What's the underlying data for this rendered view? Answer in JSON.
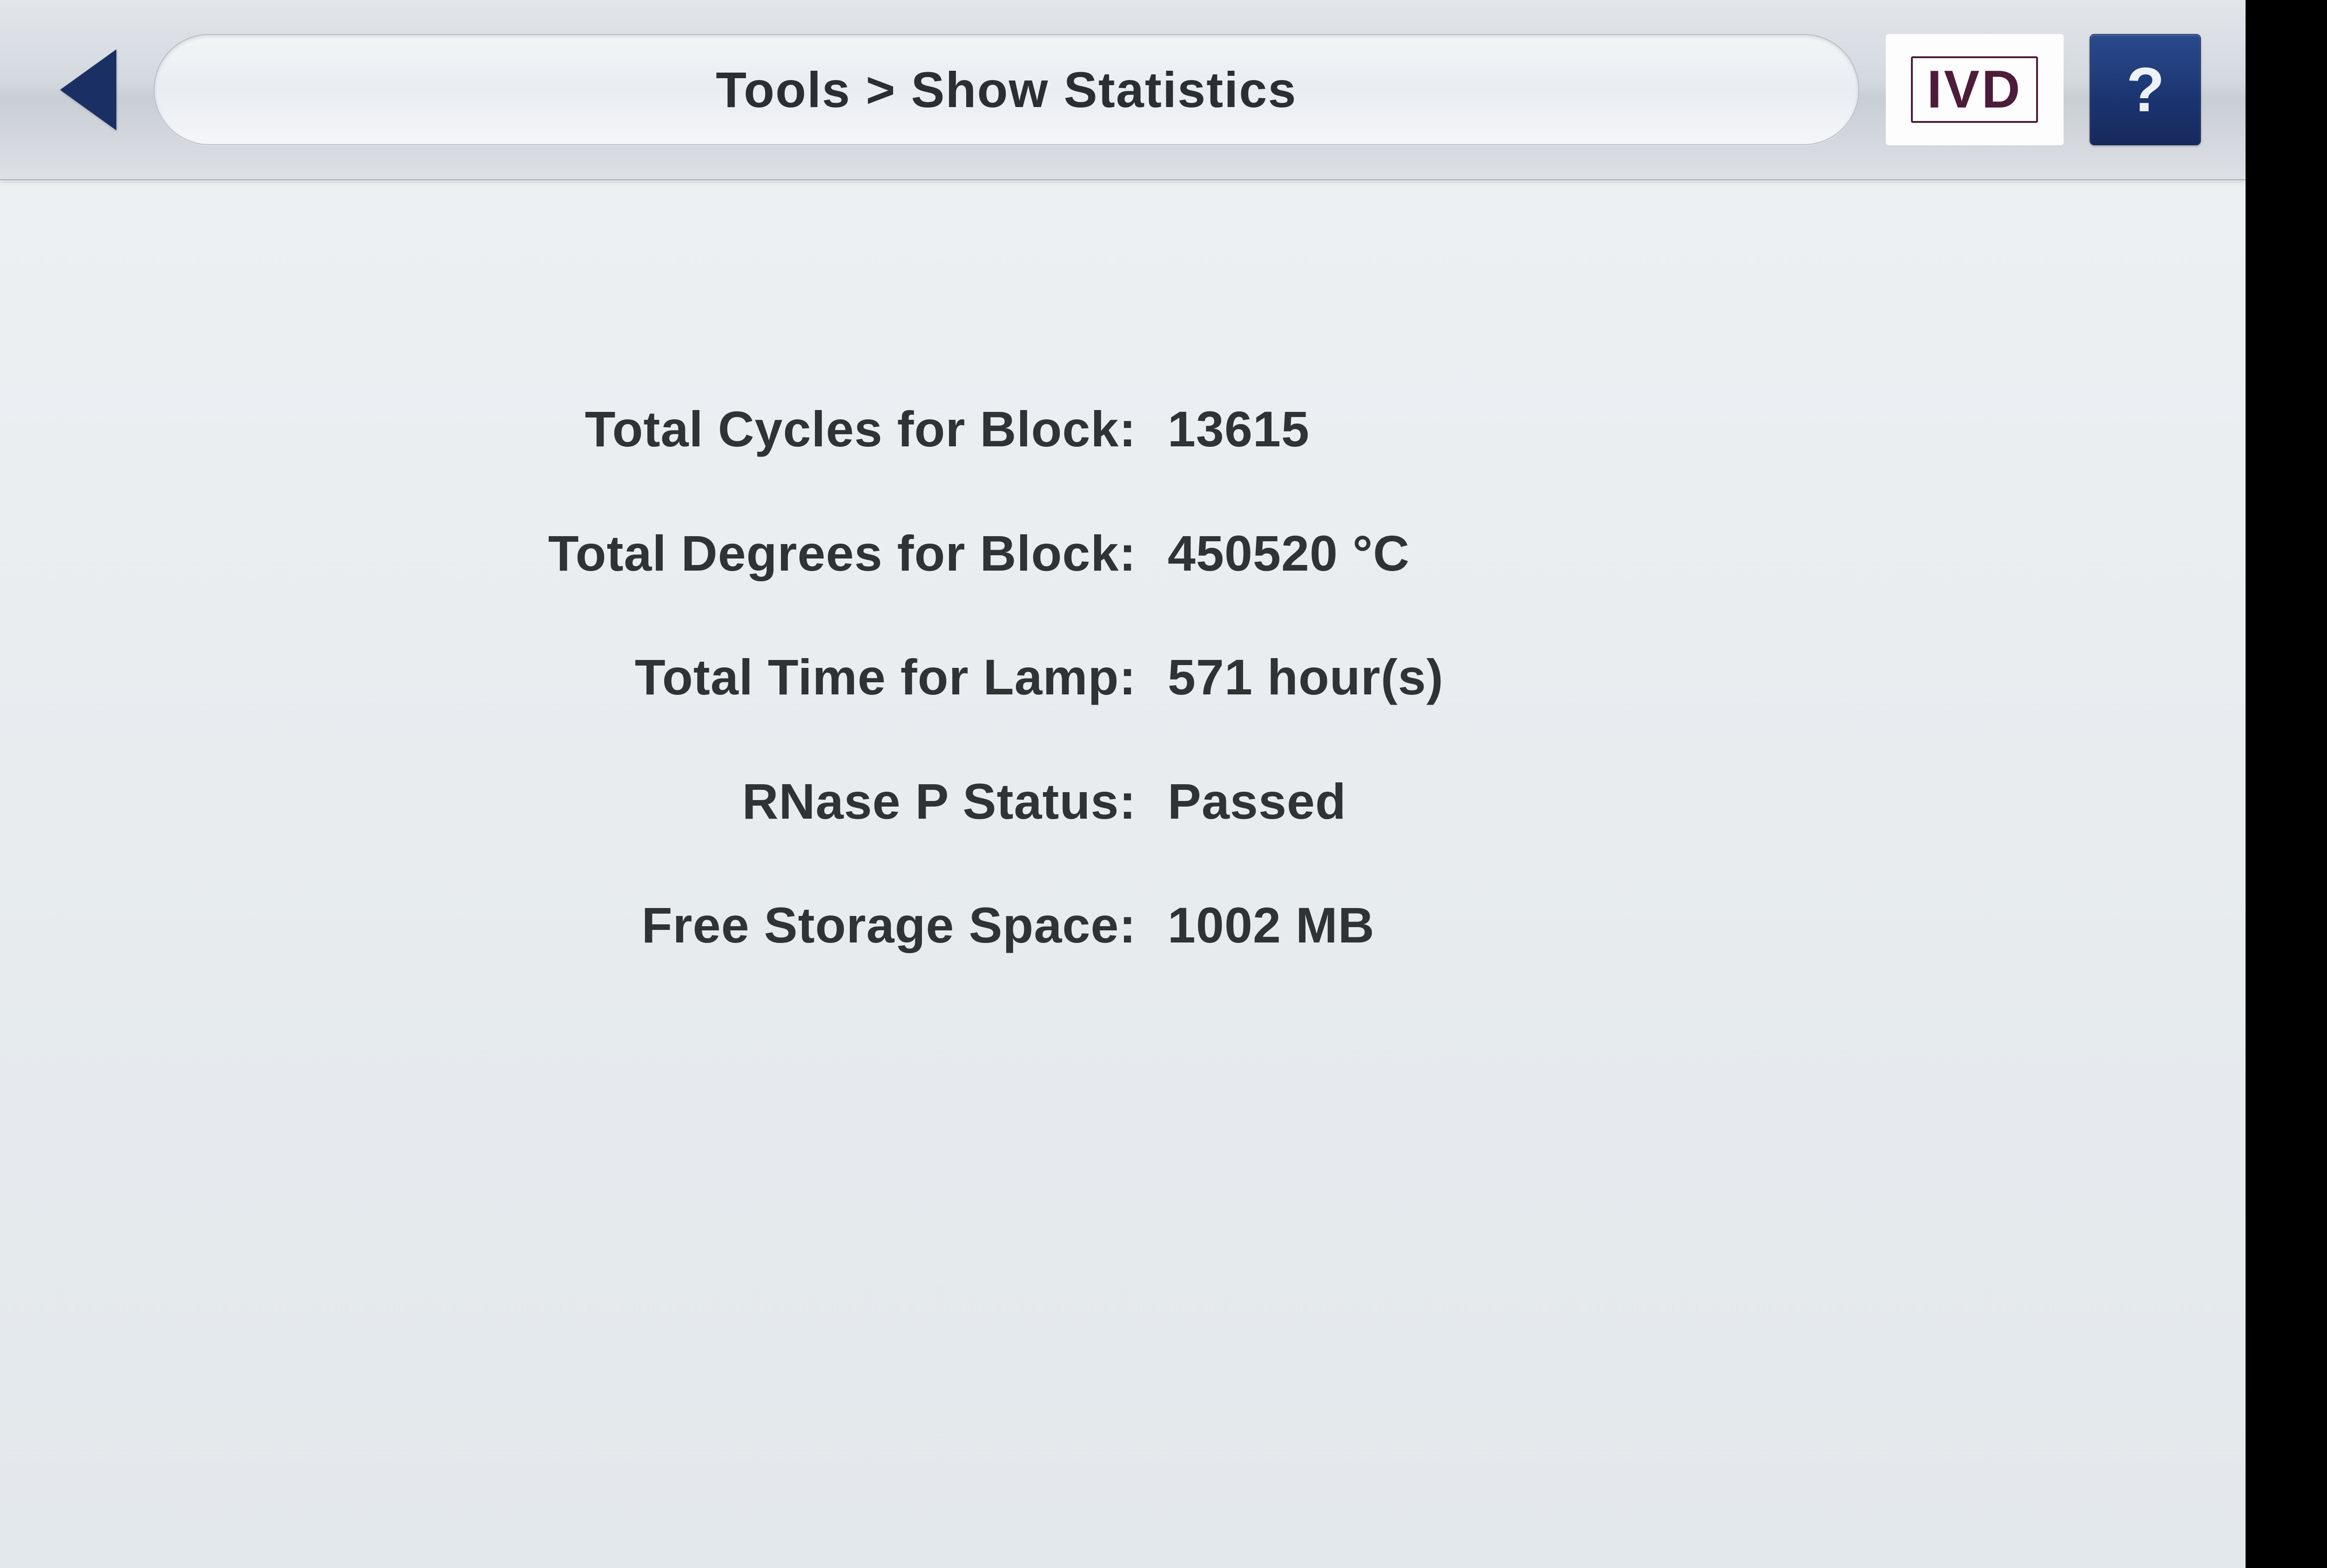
{
  "header": {
    "breadcrumb": "Tools > Show Statistics",
    "ivd_label": "IVD",
    "help_label": "?"
  },
  "stats": {
    "rows": [
      {
        "label": "Total Cycles for Block",
        "value": "13615"
      },
      {
        "label": "Total Degrees for Block",
        "value": "450520 °C"
      },
      {
        "label": "Total Time for Lamp",
        "value": "571 hour(s)"
      },
      {
        "label": "RNase P Status",
        "value": "Passed"
      },
      {
        "label": "Free Storage Space",
        "value": "1002 MB"
      }
    ]
  },
  "style": {
    "background_gradient": [
      "#eef1f4",
      "#e8ecef",
      "#e3e8ec"
    ],
    "header_gradient": [
      "#e2e6eb",
      "#d4d9df",
      "#c9ced5",
      "#dde1e6"
    ],
    "header_border": "#a9b0b8",
    "back_arrow_color": "#1a2f63",
    "breadcrumb_bg": [
      "#f2f5f8",
      "#e9edf1",
      "#f4f6f9"
    ],
    "breadcrumb_border": "#b7bec6",
    "breadcrumb_text_color": "#2a2f34",
    "ivd_border_color": "#4d1c3a",
    "ivd_text_color": "#4d1c3a",
    "ivd_bg": "#fdfdfd",
    "help_bg_gradient": [
      "#2a4a8c",
      "#1b3470",
      "#16295c"
    ],
    "help_text_color": "#eef2f8",
    "stat_text_color": "#2f3336",
    "stat_font_size_vh": 3.2,
    "stat_font_weight": 600,
    "breadcrumb_font_size_vh": 3.2,
    "header_height_pct": 11.5,
    "row_gap_vh": 4.2,
    "content_top_pad_vh": 14,
    "black_strip_width_pct": 3.5,
    "font_family": "Segoe UI / Helvetica Neue / Arial"
  }
}
